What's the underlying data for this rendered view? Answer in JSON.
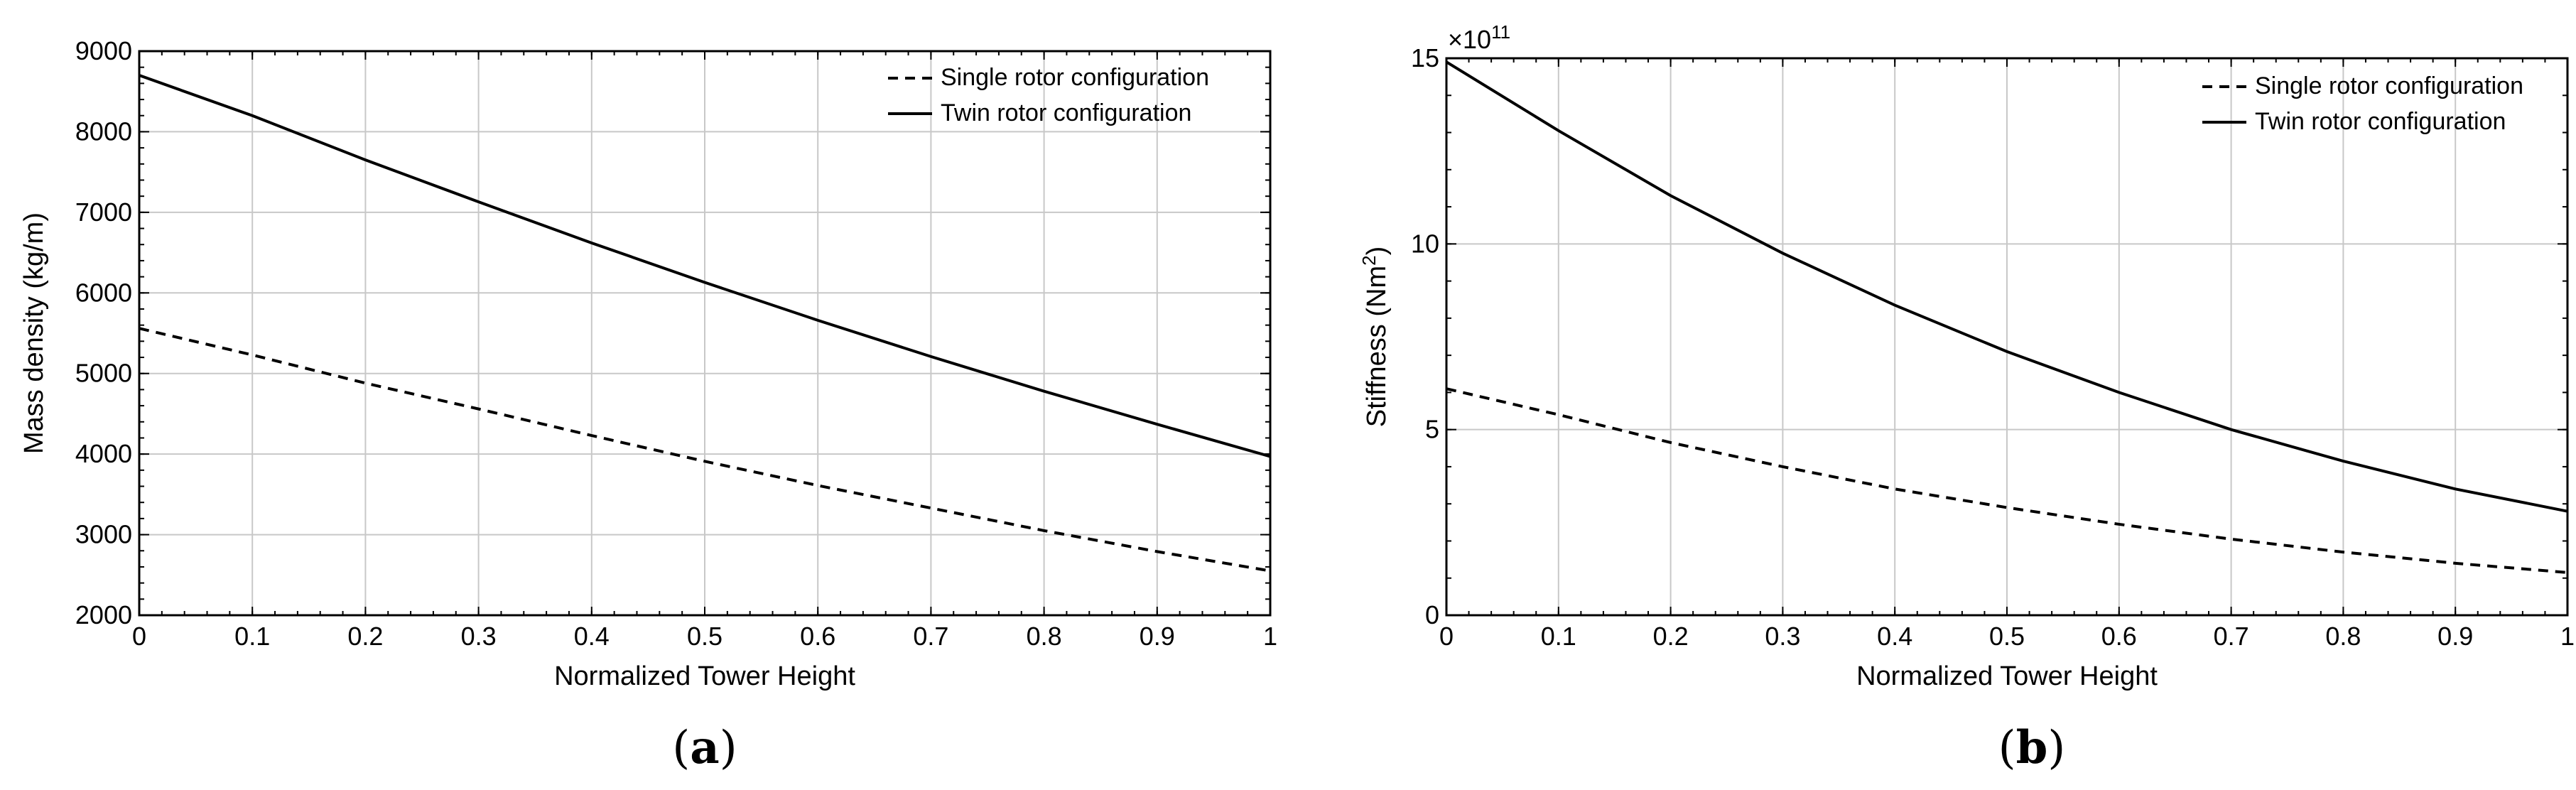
{
  "chart_data": [
    {
      "panel_label": "a",
      "type": "line",
      "xlabel": "Normalized Tower Height",
      "ylabel": "Mass density (kg/m)",
      "xlim": [
        0,
        1
      ],
      "ylim": [
        2000,
        9000
      ],
      "xticks": [
        "0",
        "0.1",
        "0.2",
        "0.3",
        "0.4",
        "0.5",
        "0.6",
        "0.7",
        "0.8",
        "0.9",
        "1"
      ],
      "yticks": [
        "2000",
        "3000",
        "4000",
        "5000",
        "6000",
        "7000",
        "8000",
        "9000"
      ],
      "grid": true,
      "legend_position": "top-right",
      "x": [
        0,
        0.1,
        0.2,
        0.3,
        0.4,
        0.5,
        0.6,
        0.7,
        0.8,
        0.9,
        1.0
      ],
      "series": [
        {
          "name": "Single rotor configuration",
          "style": "dashed",
          "values": [
            5560,
            5230,
            4880,
            4560,
            4230,
            3910,
            3610,
            3330,
            3050,
            2790,
            2550
          ]
        },
        {
          "name": "Twin rotor configuration",
          "style": "solid",
          "values": [
            8700,
            8200,
            7650,
            7130,
            6620,
            6130,
            5660,
            5210,
            4780,
            4370,
            3970
          ]
        }
      ]
    },
    {
      "panel_label": "b",
      "type": "line",
      "xlabel": "Normalized Tower Height",
      "ylabel": "Stiffness (Nm",
      "ylabel_sup": "2",
      "ylabel_end": ")",
      "exponent_prefix": "×10",
      "exponent": "11",
      "xlim": [
        0,
        1
      ],
      "ylim": [
        0,
        15
      ],
      "xticks": [
        "0",
        "0.1",
        "0.2",
        "0.3",
        "0.4",
        "0.5",
        "0.6",
        "0.7",
        "0.8",
        "0.9",
        "1"
      ],
      "yticks": [
        "0",
        "5",
        "10",
        "15"
      ],
      "grid": true,
      "legend_position": "top-right",
      "x": [
        0,
        0.1,
        0.2,
        0.3,
        0.4,
        0.5,
        0.6,
        0.7,
        0.8,
        0.9,
        1.0
      ],
      "series": [
        {
          "name": "Single rotor configuration",
          "style": "dashed",
          "values": [
            6.1,
            5.4,
            4.65,
            4.0,
            3.4,
            2.9,
            2.45,
            2.05,
            1.7,
            1.4,
            1.15
          ]
        },
        {
          "name": "Twin rotor configuration",
          "style": "solid",
          "values": [
            14.9,
            13.05,
            11.3,
            9.75,
            8.35,
            7.1,
            6.0,
            5.0,
            4.15,
            3.4,
            2.8
          ]
        }
      ]
    }
  ]
}
